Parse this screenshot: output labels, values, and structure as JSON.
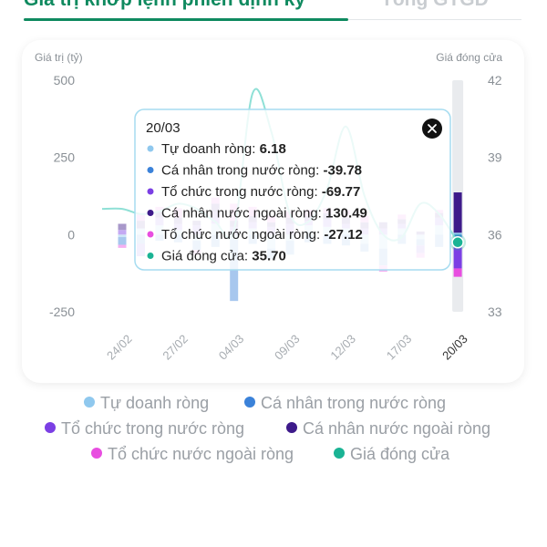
{
  "tabs": [
    {
      "label": "Giá trị khớp lệnh phiên định kỳ",
      "active": true
    },
    {
      "label": "Tổng GTGD",
      "active": false
    }
  ],
  "colors": {
    "tu_doanh": "#8fc8ee",
    "ca_nhan_trong_nuoc": "#3b82d9",
    "to_chuc_trong_nuoc": "#7b3fe4",
    "ca_nhan_nuoc_ngoai": "#3d1a8a",
    "to_chuc_nuoc_ngoai": "#e84ee0",
    "gia_dong_cua": "#1ab394",
    "price_line": "#8fe0d6",
    "accent": "#0f8a5f"
  },
  "chart_data": {
    "type": "bar",
    "stacked": true,
    "left_axis_label": "Giá trị (tỷ)",
    "right_axis_label": "Giá đóng cửa",
    "y_left": {
      "min": -250,
      "max": 500,
      "ticks": [
        "500",
        "250",
        "0",
        "-250"
      ],
      "tick_values": [
        500,
        250,
        0,
        -250
      ]
    },
    "y_right": {
      "min": 33,
      "max": 42,
      "ticks": [
        "42",
        "39",
        "36",
        "33"
      ],
      "tick_values": [
        42,
        39,
        36,
        33
      ]
    },
    "x_tick_labels": [
      "24/02",
      "27/02",
      "04/03",
      "09/03",
      "12/03",
      "17/03",
      "20/03"
    ],
    "x_tick_index": [
      0,
      3,
      6,
      9,
      12,
      15,
      18
    ],
    "dates_count": 19,
    "series": [
      {
        "name": "Tự doanh ròng",
        "key": "tu_doanh",
        "values": [
          -8,
          20,
          30,
          15,
          -20,
          35,
          -15,
          20,
          -45,
          -20,
          30,
          25,
          20,
          -30,
          -45,
          20,
          -15,
          30,
          6.18
        ]
      },
      {
        "name": "Cá nhân trong nước ròng",
        "key": "ca_nhan_trong_nuoc",
        "values": [
          -25,
          -30,
          -20,
          -25,
          -30,
          -40,
          -200,
          -30,
          -35,
          -45,
          -25,
          -30,
          -35,
          -25,
          -55,
          -30,
          -20,
          -40,
          -39.78
        ]
      },
      {
        "name": "Tổ chức trong nước ròng",
        "key": "to_chuc_trong_nuoc",
        "values": [
          15,
          -40,
          25,
          20,
          30,
          40,
          25,
          20,
          25,
          35,
          15,
          25,
          15,
          20,
          20,
          15,
          -25,
          25,
          -69.77
        ]
      },
      {
        "name": "Cá nhân nước ngoài ròng",
        "key": "ca_nhan_nuoc_ngoai",
        "values": [
          20,
          25,
          20,
          20,
          15,
          25,
          20,
          20,
          15,
          20,
          15,
          20,
          20,
          20,
          20,
          15,
          10,
          15,
          130.49
        ]
      },
      {
        "name": "Tổ chức nước ngoài ròng",
        "key": "to_chuc_nuoc_ngoai",
        "values": [
          -10,
          25,
          15,
          30,
          -15,
          20,
          55,
          30,
          20,
          20,
          20,
          15,
          25,
          20,
          -20,
          15,
          -15,
          10,
          -27.12
        ]
      }
    ],
    "price_series": {
      "name": "Giá đóng cửa",
      "values": [
        37.0,
        36.8,
        36.9,
        37.2,
        37.0,
        36.5,
        36.2,
        41.5,
        40.0,
        36.8,
        36.5,
        37.8,
        40.2,
        37.5,
        36.0,
        35.9,
        37.2,
        36.8,
        35.7
      ]
    },
    "highlight_index": 18,
    "tooltip": {
      "date": "20/03",
      "rows": [
        {
          "label": "Tự doanh ròng:",
          "value": "6.18",
          "key": "tu_doanh"
        },
        {
          "label": "Cá nhân trong nước ròng:",
          "value": "-39.78",
          "key": "ca_nhan_trong_nuoc"
        },
        {
          "label": "Tổ chức trong nước ròng:",
          "value": "-69.77",
          "key": "to_chuc_trong_nuoc"
        },
        {
          "label": "Cá nhân nước ngoài ròng:",
          "value": "130.49",
          "key": "ca_nhan_nuoc_ngoai"
        },
        {
          "label": "Tổ chức nước ngoài ròng:",
          "value": "-27.12",
          "key": "to_chuc_nuoc_ngoai"
        },
        {
          "label": "Giá đóng cửa:",
          "value": "35.70",
          "key": "gia_dong_cua"
        }
      ]
    },
    "legend": [
      {
        "label": "Tự doanh ròng",
        "key": "tu_doanh"
      },
      {
        "label": "Cá nhân trong nước ròng",
        "key": "ca_nhan_trong_nuoc"
      },
      {
        "label": "Tổ chức trong nước ròng",
        "key": "to_chuc_trong_nuoc"
      },
      {
        "label": "Cá nhân nước ngoài ròng",
        "key": "ca_nhan_nuoc_ngoai"
      },
      {
        "label": "Tổ chức nước ngoài ròng",
        "key": "to_chuc_nuoc_ngoai"
      },
      {
        "label": "Giá đóng cửa",
        "key": "gia_dong_cua"
      }
    ]
  }
}
